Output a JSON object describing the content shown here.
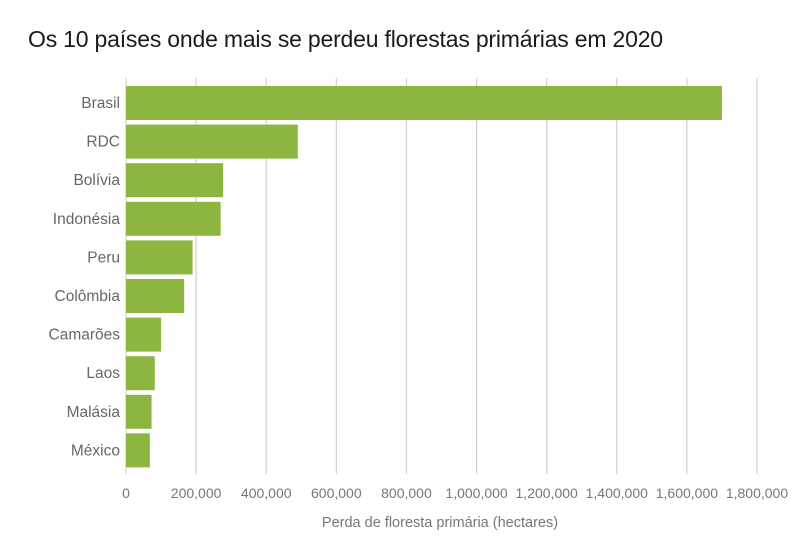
{
  "chart_data": {
    "type": "bar",
    "orientation": "horizontal",
    "title": "Os 10 países onde mais se perdeu florestas primárias em 2020",
    "xlabel": "Perda de floresta primária (hectares)",
    "ylabel": "",
    "categories": [
      "Brasil",
      "RDC",
      "Bolívia",
      "Indonésia",
      "Peru",
      "Colômbia",
      "Camarões",
      "Laos",
      "Malásia",
      "México"
    ],
    "values": [
      1700000,
      490000,
      277000,
      270000,
      190000,
      166000,
      100000,
      82000,
      73000,
      68000
    ],
    "xlim": [
      0,
      1800000
    ],
    "xticks": [
      0,
      200000,
      400000,
      600000,
      800000,
      1000000,
      1200000,
      1400000,
      1600000,
      1800000
    ],
    "xtick_labels": [
      "0",
      "200,000",
      "400,000",
      "600,000",
      "800,000",
      "1,000,000",
      "1,200,000",
      "1,400,000",
      "1,600,000",
      "1,800,000"
    ],
    "grid": "vertical",
    "bar_color": "#8db641",
    "grid_color": "#d0d0d0"
  }
}
